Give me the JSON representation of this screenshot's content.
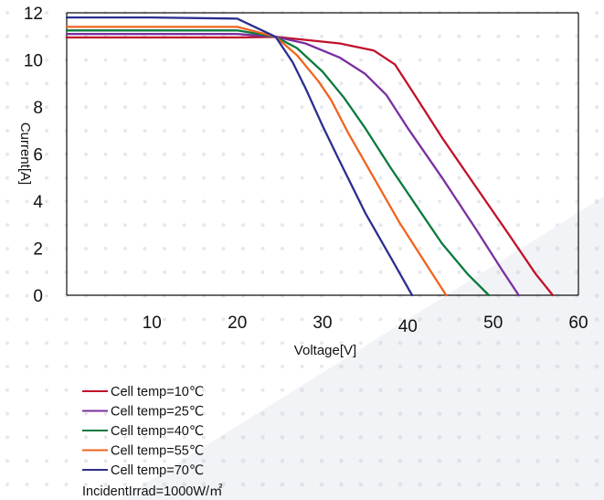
{
  "chart_data": {
    "type": "line",
    "xlabel": "Voltage[V]",
    "ylabel": "Current[A]",
    "xlim": [
      0,
      60
    ],
    "ylim": [
      0,
      12
    ],
    "x_ticks": [
      "10",
      "20",
      "30",
      "40",
      "50",
      "60"
    ],
    "y_ticks": [
      "0",
      "2",
      "4",
      "6",
      "8",
      "10",
      "12"
    ],
    "grid": "dotted background",
    "legend_position": "bottom-left",
    "series": [
      {
        "name": "Cell temp=10℃",
        "color": "#c0122a",
        "points": [
          [
            0,
            10.95
          ],
          [
            10,
            10.95
          ],
          [
            20,
            10.95
          ],
          [
            24.5,
            10.98
          ],
          [
            28,
            10.85
          ],
          [
            32,
            10.7
          ],
          [
            36,
            10.4
          ],
          [
            38.5,
            9.8
          ],
          [
            41,
            8.4
          ],
          [
            44,
            6.7
          ],
          [
            48,
            4.6
          ],
          [
            52,
            2.5
          ],
          [
            55,
            0.9
          ],
          [
            57,
            0
          ]
        ]
      },
      {
        "name": "Cell temp=25℃",
        "color": "#7b2fa0",
        "points": [
          [
            0,
            11.1
          ],
          [
            10,
            11.1
          ],
          [
            20,
            11.1
          ],
          [
            24.5,
            10.98
          ],
          [
            28,
            10.7
          ],
          [
            32,
            10.1
          ],
          [
            35,
            9.4
          ],
          [
            37.5,
            8.5
          ],
          [
            40,
            7.1
          ],
          [
            44,
            5.0
          ],
          [
            48,
            2.8
          ],
          [
            51,
            1.1
          ],
          [
            53,
            0
          ]
        ]
      },
      {
        "name": "Cell temp=40℃",
        "color": "#0b7a3e",
        "points": [
          [
            0,
            11.25
          ],
          [
            10,
            11.25
          ],
          [
            20,
            11.25
          ],
          [
            24.5,
            10.98
          ],
          [
            27,
            10.5
          ],
          [
            30,
            9.5
          ],
          [
            32.5,
            8.4
          ],
          [
            35,
            7.1
          ],
          [
            38,
            5.4
          ],
          [
            41,
            3.8
          ],
          [
            44,
            2.2
          ],
          [
            47,
            0.9
          ],
          [
            49.5,
            0
          ]
        ]
      },
      {
        "name": "Cell temp=55℃",
        "color": "#f0641f",
        "points": [
          [
            0,
            11.4
          ],
          [
            10,
            11.4
          ],
          [
            20,
            11.4
          ],
          [
            24.5,
            10.98
          ],
          [
            27,
            10.2
          ],
          [
            29.5,
            9.1
          ],
          [
            31,
            8.3
          ],
          [
            33,
            6.9
          ],
          [
            36,
            5.0
          ],
          [
            39,
            3.1
          ],
          [
            42,
            1.4
          ],
          [
            44.5,
            0
          ]
        ]
      },
      {
        "name": "Cell temp=70℃",
        "color": "#2b2f8f",
        "points": [
          [
            0,
            11.8
          ],
          [
            10,
            11.8
          ],
          [
            20,
            11.75
          ],
          [
            24.5,
            10.98
          ],
          [
            26.5,
            9.9
          ],
          [
            28,
            8.8
          ],
          [
            30,
            7.2
          ],
          [
            32,
            5.7
          ],
          [
            35,
            3.5
          ],
          [
            38,
            1.6
          ],
          [
            40.5,
            0
          ]
        ]
      }
    ]
  },
  "legend_note": "IncidentIrrad=1000W/㎡"
}
